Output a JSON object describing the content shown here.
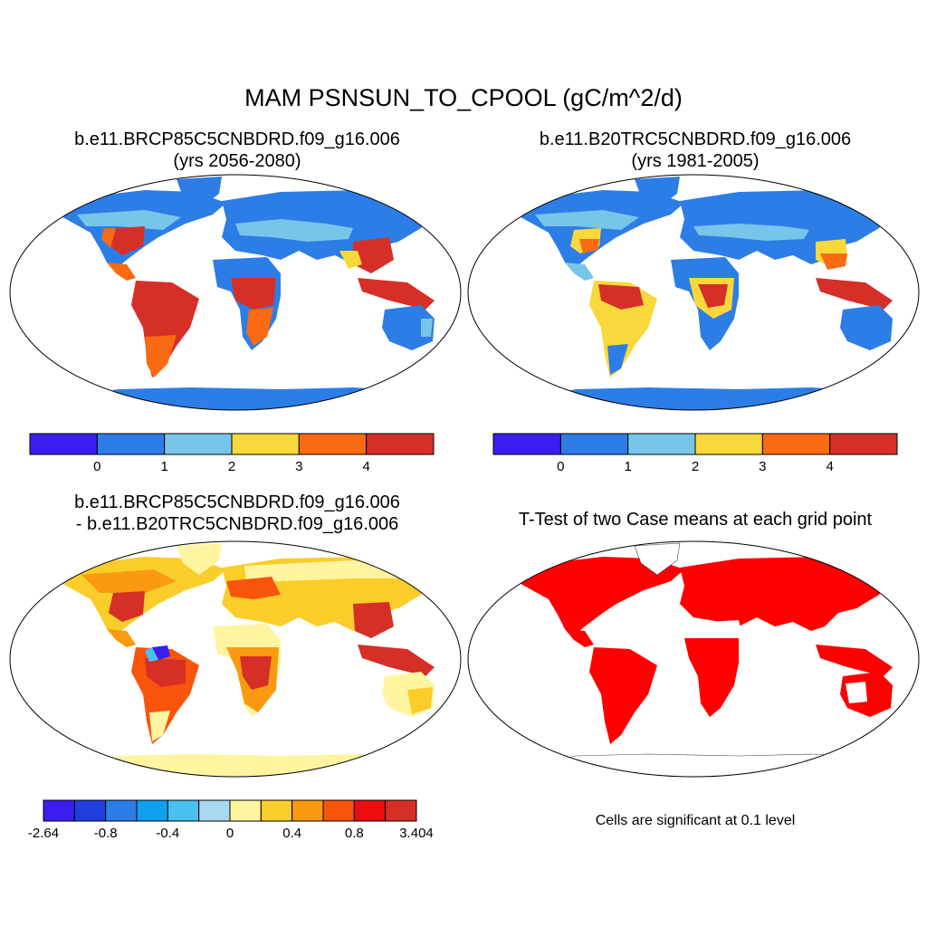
{
  "main_title": "MAM PSNSUN_TO_CPOOL (gC/m^2/d)",
  "panels": [
    {
      "title_line1": "b.e11.BRCP85C5CNBDRD.f09_g16.006",
      "title_line2": "(yrs 2056-2080)",
      "colorbar": {
        "colors": [
          "#3a1ef0",
          "#2d7de6",
          "#78c5ea",
          "#f9d83c",
          "#f96a12",
          "#d62f27"
        ],
        "ticks": [
          "0",
          "1",
          "2",
          "3",
          "4"
        ]
      }
    },
    {
      "title_line1": "b.e11.B20TRC5CNBDRD.f09_g16.006",
      "title_line2": "(yrs 1981-2005)",
      "colorbar": {
        "colors": [
          "#3a1ef0",
          "#2d7de6",
          "#78c5ea",
          "#f9d83c",
          "#f96a12",
          "#d62f27"
        ],
        "ticks": [
          "0",
          "1",
          "2",
          "3",
          "4"
        ]
      }
    },
    {
      "title_line1": "b.e11.BRCP85C5CNBDRD.f09_g16.006",
      "title_line2": "- b.e11.B20TRC5CNBDRD.f09_g16.006",
      "colorbar": {
        "colors": [
          "#3a1ef0",
          "#1f3ee0",
          "#2d7de6",
          "#10a0f0",
          "#48c0f0",
          "#a8d8f0",
          "#fff5a0",
          "#fbcd2a",
          "#fb9a10",
          "#f9540c",
          "#ea0e0e",
          "#d62f27"
        ],
        "ticks": [
          "-2.64",
          "-0.8",
          "-0.4",
          "0",
          "0.4",
          "0.8",
          "3.404"
        ]
      }
    },
    {
      "title_line1": "T-Test of two Case means at each grid point",
      "note": "Cells are significant at 0.1 level",
      "significant_color": "#ff0000"
    }
  ],
  "map_colors": {
    "land_default": "#2d7de6",
    "low": "#78c5ea",
    "mid": "#f9d83c",
    "high": "#f96a12",
    "very_high": "#d62f27",
    "diff_base": "#fff5a0",
    "diff_low": "#fbcd2a",
    "diff_mid": "#fb9a10",
    "diff_high": "#d62f27",
    "diff_neg": "#48c0f0",
    "diff_very_neg": "#3a1ef0"
  }
}
